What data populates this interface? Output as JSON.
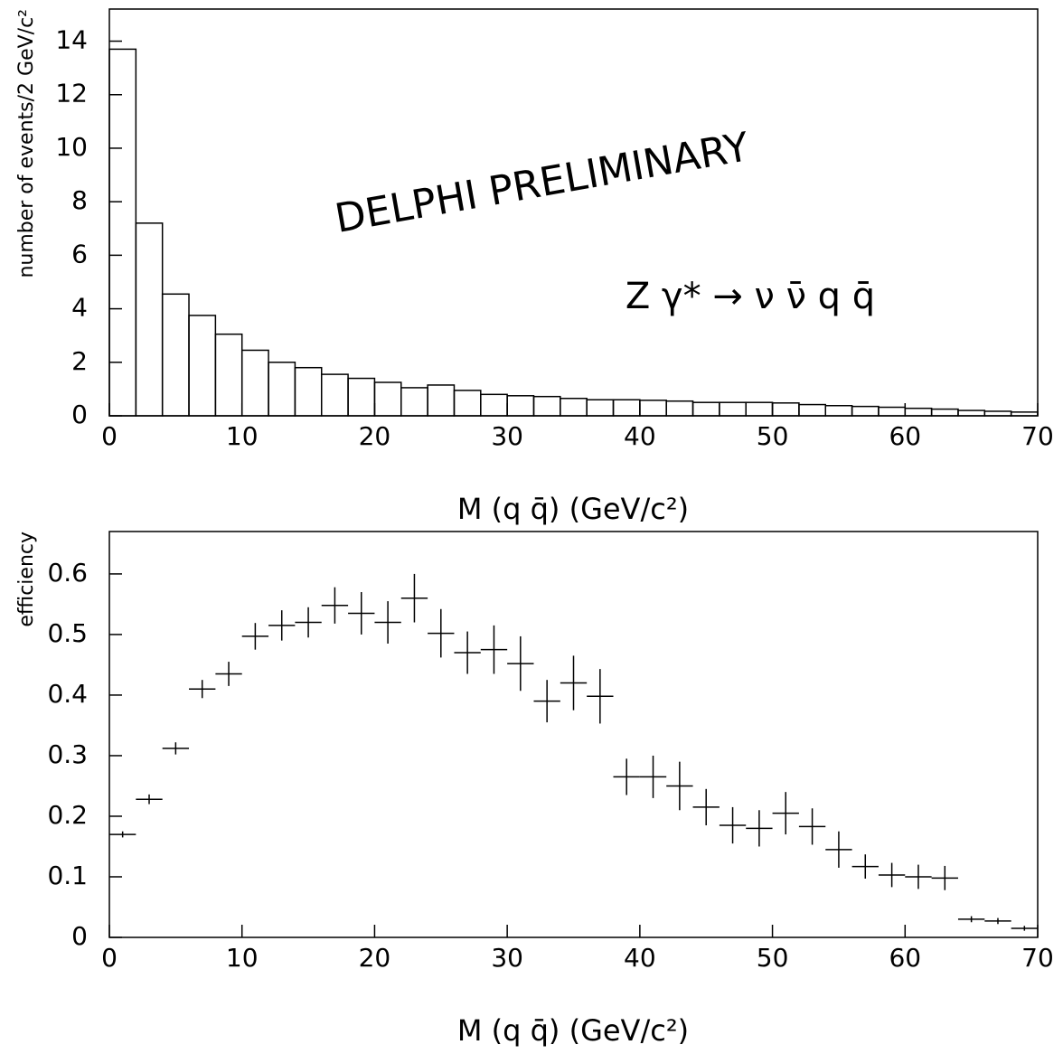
{
  "chart_data": [
    {
      "type": "histogram",
      "ylabel": "number of events/2 GeV/c²",
      "xlabel": "M (q q̄)  (GeV/c²)",
      "annotations": [
        "DELPHI PRELIMINARY",
        "Z γ* → ν ν̄ q q̄"
      ],
      "bins": [
        0,
        2,
        4,
        6,
        8,
        10,
        12,
        14,
        16,
        18,
        20,
        22,
        24,
        26,
        28,
        30,
        32,
        34,
        36,
        38,
        40,
        42,
        44,
        46,
        48,
        50,
        52,
        54,
        56,
        58,
        60,
        62,
        64,
        66,
        68,
        70
      ],
      "values": [
        13.7,
        7.2,
        4.55,
        3.75,
        3.05,
        2.45,
        2.0,
        1.8,
        1.55,
        1.4,
        1.25,
        1.05,
        1.15,
        0.95,
        0.8,
        0.75,
        0.72,
        0.65,
        0.6,
        0.6,
        0.58,
        0.55,
        0.5,
        0.5,
        0.5,
        0.48,
        0.42,
        0.38,
        0.35,
        0.32,
        0.28,
        0.25,
        0.2,
        0.17,
        0.14
      ],
      "color": "#000000",
      "xlim": [
        0,
        70
      ],
      "xticks": [
        0,
        10,
        20,
        30,
        40,
        50,
        60,
        70
      ],
      "ylim": [
        0,
        15.2
      ],
      "yticks": [
        0,
        2,
        4,
        6,
        8,
        10,
        12,
        14
      ]
    },
    {
      "type": "errorbar",
      "ylabel": "efficiency",
      "xlabel": "M (q q̄)  (GeV/c²)",
      "x": [
        1,
        3,
        5,
        7,
        9,
        11,
        13,
        15,
        17,
        19,
        21,
        23,
        25,
        27,
        29,
        31,
        33,
        35,
        37,
        39,
        41,
        43,
        45,
        47,
        49,
        51,
        53,
        55,
        57,
        59,
        61,
        63,
        65,
        67,
        69
      ],
      "values": [
        0.17,
        0.228,
        0.312,
        0.41,
        0.435,
        0.497,
        0.515,
        0.52,
        0.548,
        0.535,
        0.52,
        0.56,
        0.502,
        0.47,
        0.475,
        0.452,
        0.39,
        0.42,
        0.398,
        0.265,
        0.265,
        0.25,
        0.215,
        0.185,
        0.18,
        0.205,
        0.183,
        0.145,
        0.117,
        0.103,
        0.1,
        0.098,
        0.03,
        0.027,
        0.015
      ],
      "errors": [
        0.005,
        0.008,
        0.01,
        0.015,
        0.02,
        0.022,
        0.025,
        0.025,
        0.03,
        0.035,
        0.035,
        0.04,
        0.04,
        0.035,
        0.04,
        0.045,
        0.035,
        0.045,
        0.045,
        0.03,
        0.035,
        0.04,
        0.03,
        0.03,
        0.03,
        0.035,
        0.03,
        0.03,
        0.02,
        0.02,
        0.02,
        0.02,
        0.005,
        0.005,
        0.004
      ],
      "xerr": 1,
      "color": "#000000",
      "xlim": [
        0,
        70
      ],
      "xticks": [
        0,
        10,
        20,
        30,
        40,
        50,
        60,
        70
      ],
      "ylim": [
        0,
        0.67
      ],
      "yticks": [
        0,
        0.1,
        0.2,
        0.3,
        0.4,
        0.5,
        0.6
      ]
    }
  ]
}
